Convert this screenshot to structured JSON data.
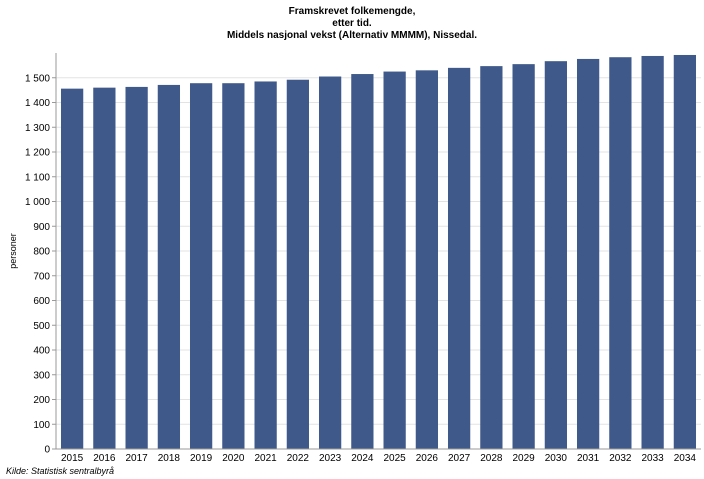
{
  "chart_data": {
    "type": "bar",
    "title_lines": [
      "Framskrevet folkemengde,",
      "etter tid.",
      "Middels nasjonal vekst (Alternativ MMMM), Nissedal."
    ],
    "xlabel": "",
    "ylabel": "personer",
    "categories": [
      "2015",
      "2016",
      "2017",
      "2018",
      "2019",
      "2020",
      "2021",
      "2022",
      "2023",
      "2024",
      "2025",
      "2026",
      "2027",
      "2028",
      "2029",
      "2030",
      "2031",
      "2032",
      "2033",
      "2034"
    ],
    "values": [
      1456,
      1460,
      1463,
      1471,
      1478,
      1478,
      1485,
      1492,
      1505,
      1515,
      1525,
      1530,
      1540,
      1547,
      1555,
      1567,
      1576,
      1583,
      1588,
      1592
    ],
    "ylim": [
      0,
      1600
    ],
    "yticks": [
      0,
      100,
      200,
      300,
      400,
      500,
      600,
      700,
      800,
      900,
      1000,
      1100,
      1200,
      1300,
      1400,
      1500
    ],
    "ytick_labels": [
      "0",
      "100",
      "200",
      "300",
      "400",
      "500",
      "600",
      "700",
      "800",
      "900",
      "1 000",
      "1 100",
      "1 200",
      "1 300",
      "1 400",
      "1 500"
    ],
    "grid": true,
    "bar_color": "#3f5a8a"
  },
  "source": "Kilde: Statistisk sentralbyrå"
}
